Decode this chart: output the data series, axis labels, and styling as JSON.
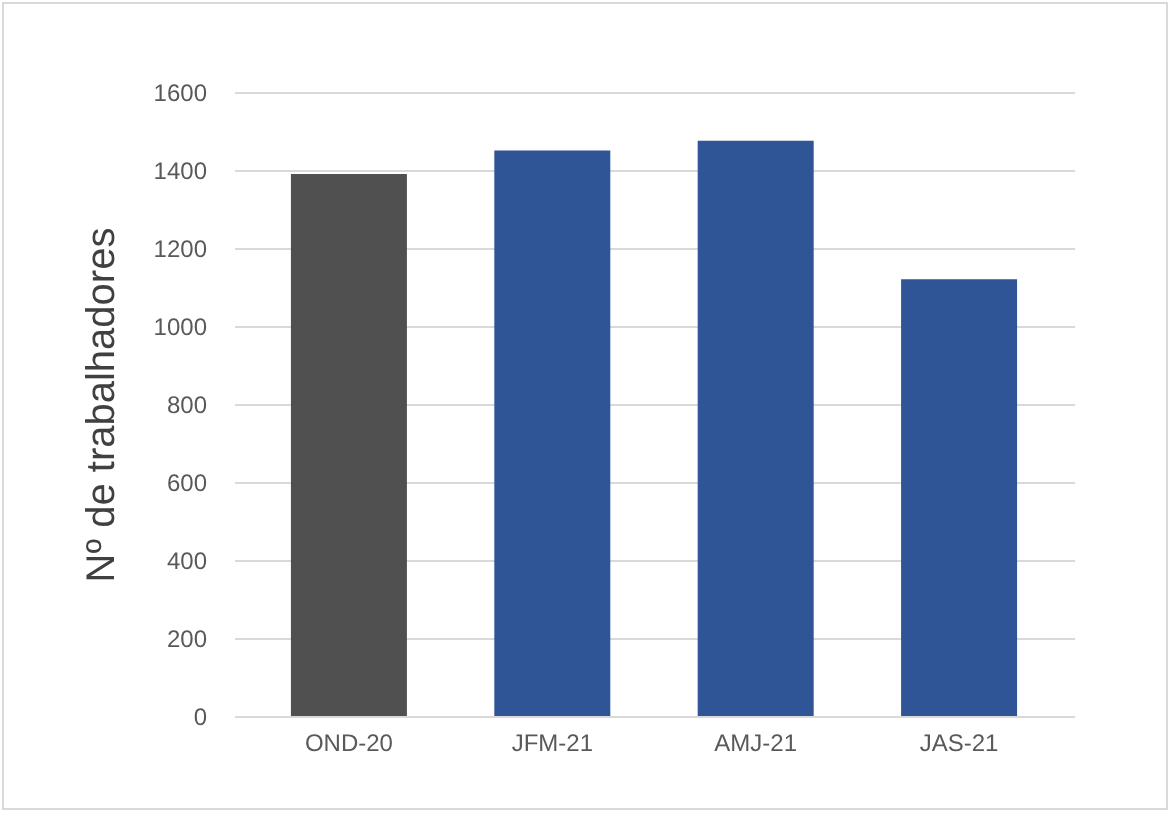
{
  "chart_data": {
    "type": "bar",
    "ylabel": "Nº de trabalhadores",
    "categories": [
      "OND-20",
      "JFM-21",
      "AMJ-21",
      "JAS-21"
    ],
    "values": [
      1390,
      1450,
      1475,
      1120
    ],
    "colors": [
      "#505050",
      "#2f5597",
      "#2f5597",
      "#2f5597"
    ],
    "ylim": [
      0,
      1600
    ],
    "yticks": [
      0,
      200,
      400,
      600,
      800,
      1000,
      1200,
      1400,
      1600
    ],
    "grid": "y"
  }
}
